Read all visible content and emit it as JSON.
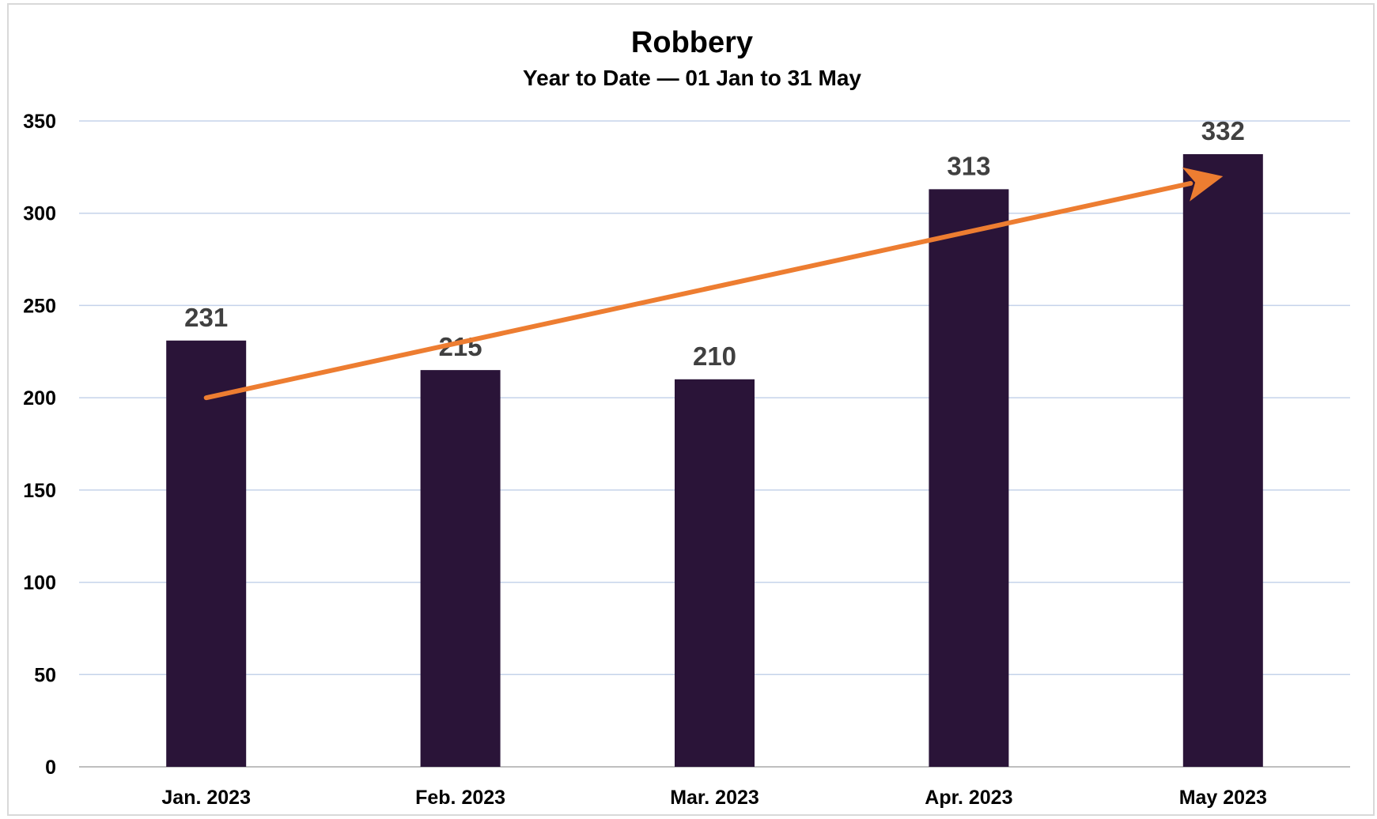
{
  "chart_data": {
    "type": "bar",
    "title": "Robbery",
    "subtitle": "Year to Date — 01 Jan to 31 May",
    "categories": [
      "Jan. 2023",
      "Feb. 2023",
      "Mar. 2023",
      "Apr. 2023",
      "May 2023"
    ],
    "values": [
      231,
      215,
      210,
      313,
      332
    ],
    "data_labels": [
      "231",
      "215",
      "210",
      "313",
      "332"
    ],
    "ylim": [
      0,
      350
    ],
    "yticks": [
      0,
      50,
      100,
      150,
      200,
      250,
      300,
      350
    ],
    "ytick_labels": [
      "0",
      "50",
      "100",
      "150",
      "200",
      "250",
      "300",
      "350"
    ],
    "xlabel": "",
    "ylabel": "",
    "grid": true,
    "legend": "none",
    "trend_arrow": {
      "from_category": "Jan. 2023",
      "from_value": 200,
      "to_category": "May 2023",
      "to_value": 320
    },
    "colors": {
      "bar": "#2a1438",
      "arrow": "#ed7d31",
      "grid": "#c5d3ea",
      "value_label": "#404040"
    }
  }
}
